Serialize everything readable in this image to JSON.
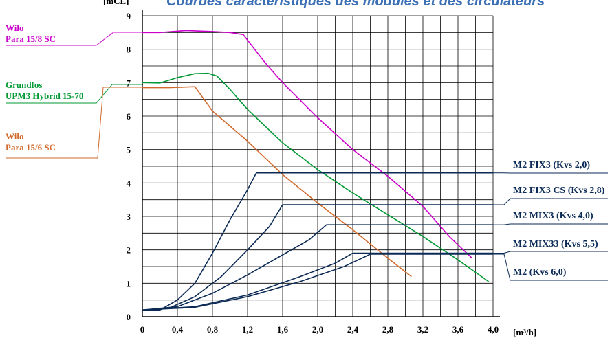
{
  "chart_data": {
    "type": "line",
    "title": "Courbes caractéristiques des modules et des circulateurs",
    "ylabel": "[mCE]",
    "xlabel": "[m³/h]",
    "xlim": [
      0,
      4.0
    ],
    "ylim": [
      0,
      9
    ],
    "x_ticks": [
      "0",
      "0,4",
      "0,8",
      "1,2",
      "1,6",
      "2,0",
      "2,4",
      "2,8",
      "3,2",
      "3,6",
      "4,0"
    ],
    "y_ticks": [
      "0",
      "1",
      "2",
      "3",
      "4",
      "5",
      "6",
      "7",
      "8",
      "9"
    ],
    "grid": true,
    "left_labels": [
      {
        "lines": [
          "Wilo",
          "Para 15/8 SC"
        ],
        "color": "#cc00cc"
      },
      {
        "lines": [
          "Grundfos",
          "UPM3 Hybrid 15-70"
        ],
        "color": "#009933"
      },
      {
        "lines": [
          "Wilo",
          "Para 15/6 SC"
        ],
        "color": "#d2692a"
      }
    ],
    "right_labels": [
      {
        "text": "M2 FIX3 (Kvs 2,0)"
      },
      {
        "text": "M2 FIX3 CS (Kvs 2,8)"
      },
      {
        "text": "M2 MIX3 (Kvs 4,0)"
      },
      {
        "text": "M2 MIX33 (Kvs 5,5)"
      },
      {
        "text": "M2 (Kvs 6,0)"
      }
    ],
    "series": [
      {
        "name": "Wilo Para 15/8 SC",
        "color": "#cc00cc",
        "points": [
          [
            0,
            8.5
          ],
          [
            0.2,
            8.5
          ],
          [
            0.5,
            8.56
          ],
          [
            0.8,
            8.53
          ],
          [
            1.0,
            8.5
          ],
          [
            1.15,
            8.44
          ],
          [
            1.4,
            7.6
          ],
          [
            1.6,
            7.0
          ],
          [
            2.0,
            5.95
          ],
          [
            2.4,
            5.0
          ],
          [
            2.8,
            4.2
          ],
          [
            3.2,
            3.3
          ],
          [
            3.5,
            2.4
          ],
          [
            3.76,
            1.75
          ]
        ]
      },
      {
        "name": "Grundfos UPM3 Hybrid 15-70",
        "color": "#009933",
        "points": [
          [
            0,
            7.0
          ],
          [
            0.2,
            6.99
          ],
          [
            0.4,
            7.15
          ],
          [
            0.6,
            7.27
          ],
          [
            0.75,
            7.28
          ],
          [
            0.85,
            7.2
          ],
          [
            1.0,
            6.8
          ],
          [
            1.2,
            6.2
          ],
          [
            1.6,
            5.2
          ],
          [
            2.0,
            4.4
          ],
          [
            2.4,
            3.7
          ],
          [
            2.8,
            3.05
          ],
          [
            3.2,
            2.4
          ],
          [
            3.6,
            1.7
          ],
          [
            3.95,
            1.05
          ]
        ]
      },
      {
        "name": "Wilo Para 15/6 SC",
        "color": "#d2692a",
        "points": [
          [
            0,
            6.85
          ],
          [
            0.3,
            6.85
          ],
          [
            0.6,
            6.88
          ],
          [
            0.8,
            6.15
          ],
          [
            1.2,
            5.25
          ],
          [
            1.6,
            4.25
          ],
          [
            2.0,
            3.4
          ],
          [
            2.4,
            2.6
          ],
          [
            2.8,
            1.75
          ],
          [
            3.07,
            1.2
          ]
        ]
      },
      {
        "name": "M2 FIX3 (Kvs 2,0)",
        "color": "#0b2a55",
        "points": [
          [
            0,
            0.2
          ],
          [
            0.2,
            0.2
          ],
          [
            0.4,
            0.5
          ],
          [
            0.6,
            1.0
          ],
          [
            0.8,
            1.9
          ],
          [
            1.0,
            2.9
          ],
          [
            1.2,
            3.8
          ],
          [
            1.3,
            4.3
          ],
          [
            4.0,
            4.3
          ]
        ]
      },
      {
        "name": "M2 FIX3 CS (Kvs 2,8)",
        "color": "#0b2a55",
        "points": [
          [
            0,
            0.2
          ],
          [
            0.3,
            0.25
          ],
          [
            0.6,
            0.6
          ],
          [
            0.9,
            1.2
          ],
          [
            1.2,
            2.0
          ],
          [
            1.45,
            2.7
          ],
          [
            1.6,
            3.35
          ],
          [
            4.0,
            3.35
          ]
        ]
      },
      {
        "name": "M2 MIX3 (Kvs 4,0)",
        "color": "#0b2a55",
        "points": [
          [
            0,
            0.2
          ],
          [
            0.4,
            0.3
          ],
          [
            0.8,
            0.7
          ],
          [
            1.2,
            1.25
          ],
          [
            1.6,
            1.85
          ],
          [
            1.9,
            2.3
          ],
          [
            2.1,
            2.75
          ],
          [
            4.0,
            2.75
          ]
        ]
      },
      {
        "name": "M2 MIX33 (Kvs 5,5)",
        "color": "#0b2a55",
        "points": [
          [
            0,
            0.2
          ],
          [
            0.6,
            0.3
          ],
          [
            1.2,
            0.65
          ],
          [
            1.8,
            1.2
          ],
          [
            2.2,
            1.6
          ],
          [
            2.4,
            1.9
          ],
          [
            4.0,
            1.9
          ]
        ]
      },
      {
        "name": "M2 (Kvs 6,0)",
        "color": "#0b2a55",
        "points": [
          [
            0,
            0.2
          ],
          [
            0.6,
            0.28
          ],
          [
            1.2,
            0.6
          ],
          [
            1.8,
            1.05
          ],
          [
            2.3,
            1.5
          ],
          [
            2.6,
            1.87
          ],
          [
            4.0,
            1.87
          ]
        ]
      }
    ]
  }
}
